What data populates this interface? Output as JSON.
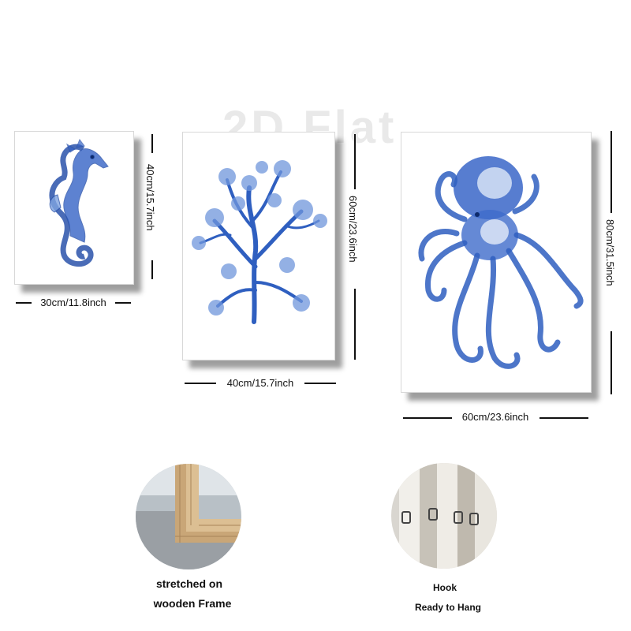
{
  "watermark": "2D Flat",
  "panels": [
    {
      "name": "seahorse",
      "width_label": "30cm/11.8inch",
      "height_label": "40cm/15.7inch"
    },
    {
      "name": "coral",
      "width_label": "40cm/15.7inch",
      "height_label": "60cm/23.6inch"
    },
    {
      "name": "octopus",
      "width_label": "60cm/23.6inch",
      "height_label": "80cm/31.5inch"
    }
  ],
  "features": [
    {
      "name": "wooden-frame",
      "caption_line1": "stretched on",
      "caption_line2": "wooden Frame"
    },
    {
      "name": "hook",
      "caption_line1": "Hook",
      "caption_line2": "Ready to Hang"
    }
  ],
  "colors": {
    "ink_blue": "#2f5fc0",
    "light_blue": "#7fa3e0",
    "wood": "#d8b98c"
  }
}
